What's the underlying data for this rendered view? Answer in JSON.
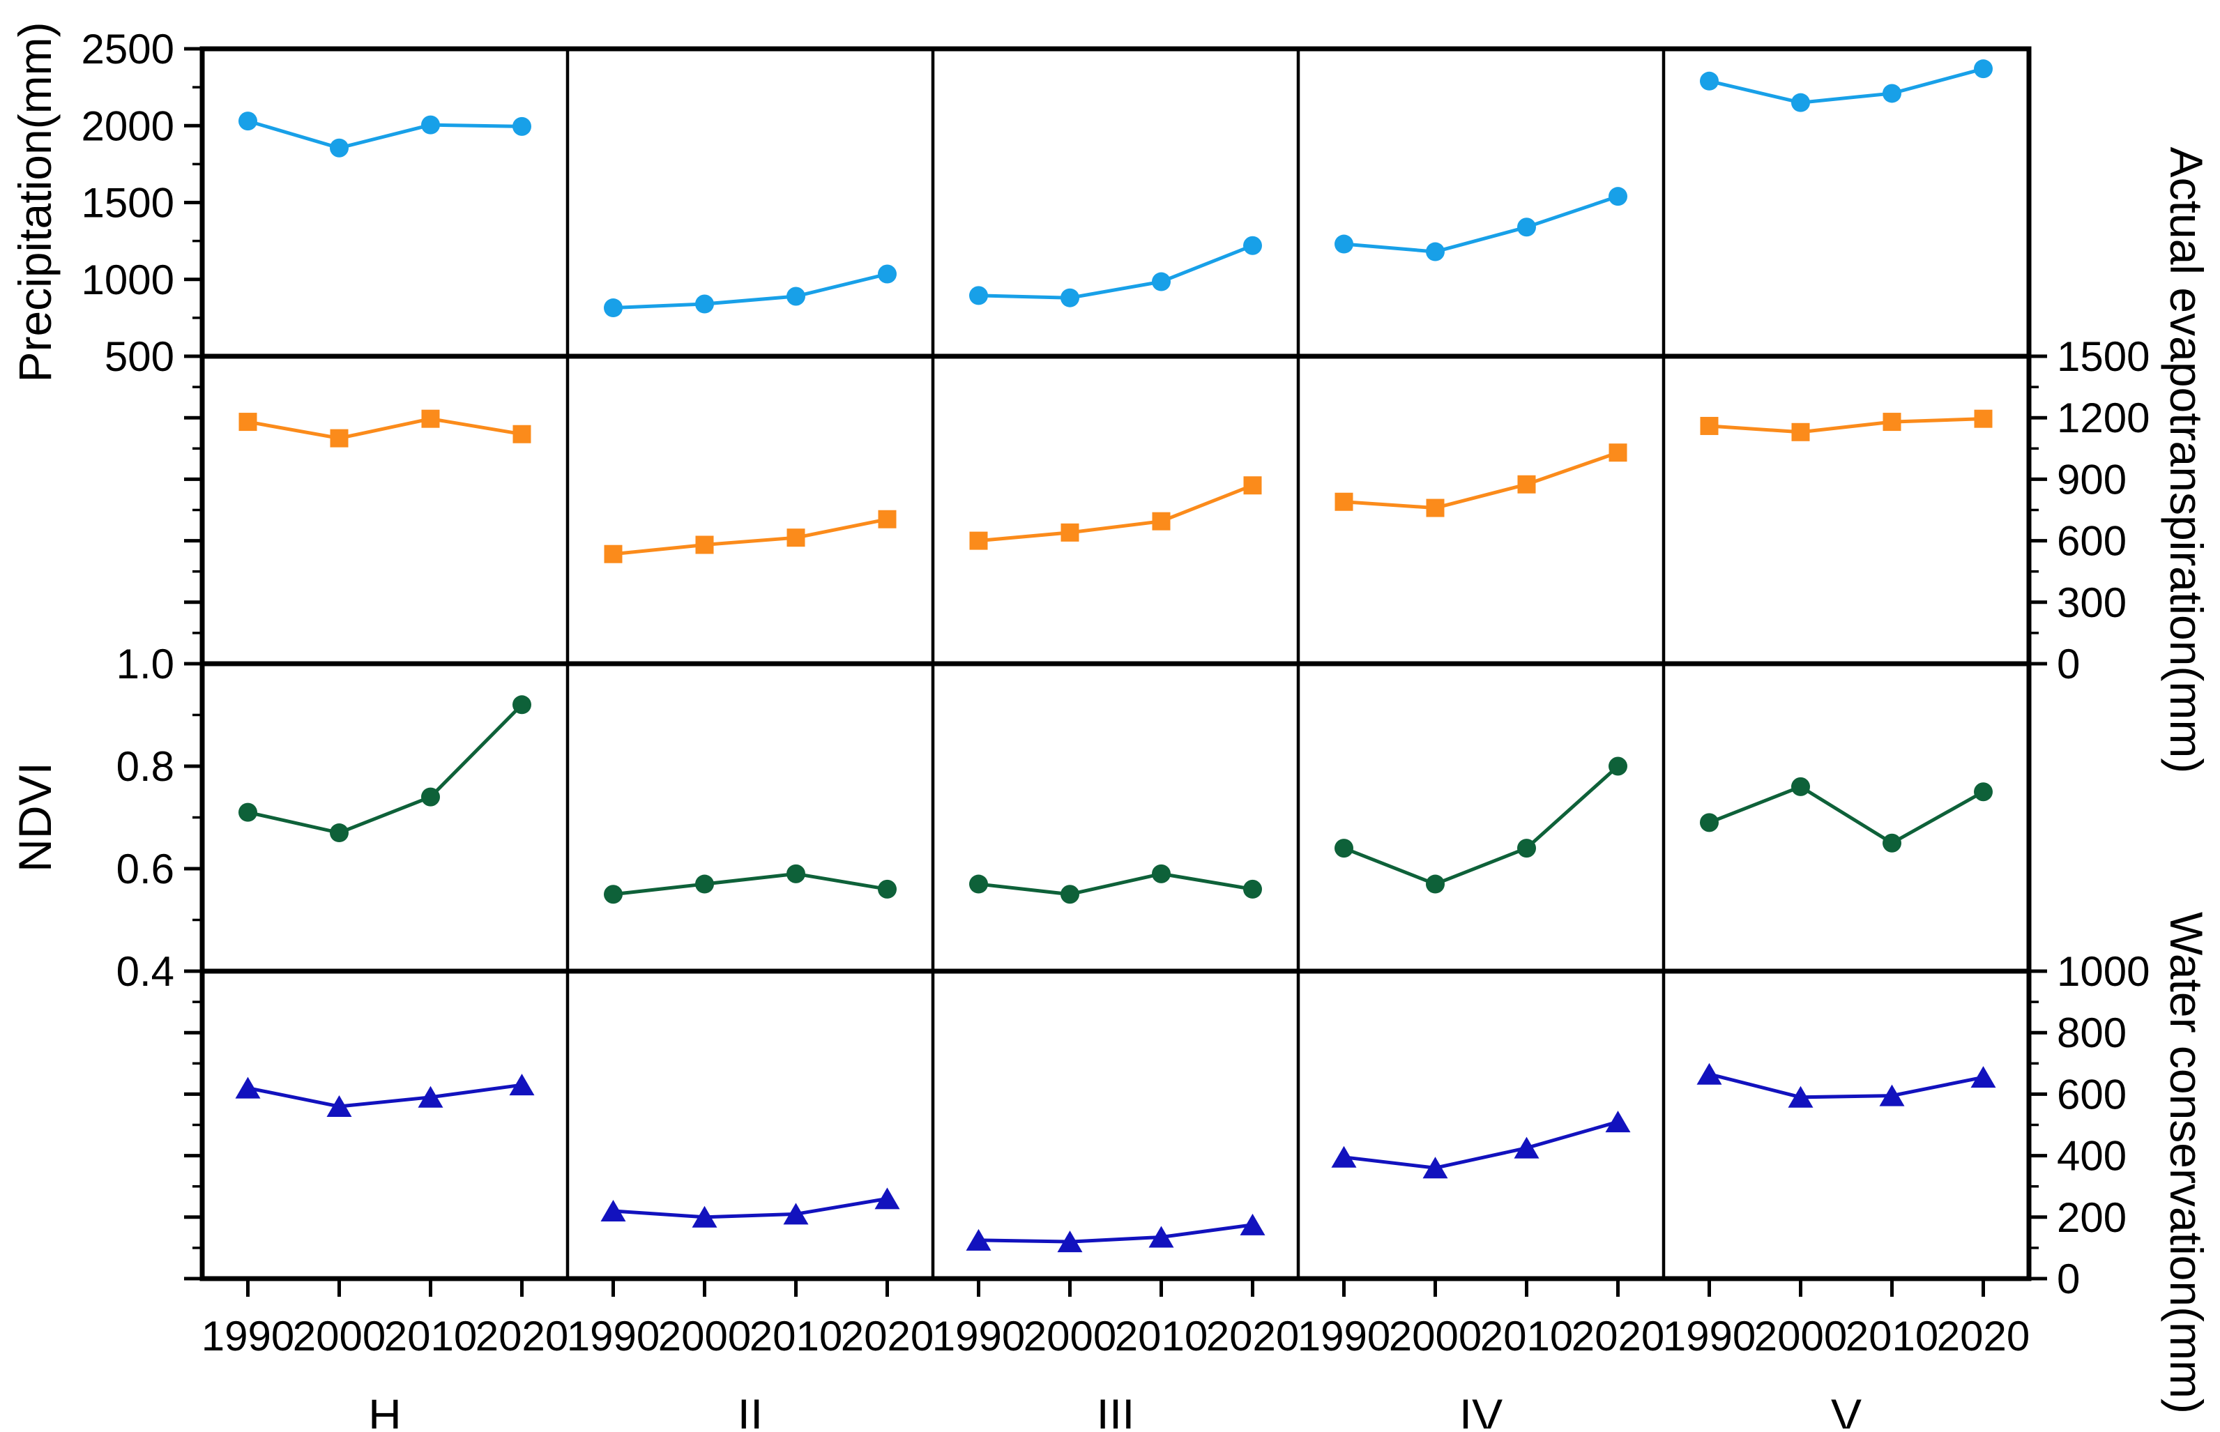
{
  "chart_data": {
    "type": "line",
    "layout": "small-multiples grid: 4 variable rows x 5 region columns, shared x axis",
    "columns": [
      "H",
      "II",
      "III",
      "IV",
      "V"
    ],
    "x": [
      1990,
      2000,
      2010,
      2020
    ],
    "x_tick_labels": [
      "1990",
      "2000",
      "2010",
      "2020"
    ],
    "axis_color": "#000000",
    "background": "#ffffff",
    "rows": [
      {
        "name": "precipitation",
        "ylabel": "Precipitation(mm)",
        "label_side": "left",
        "ylim": [
          500,
          2500
        ],
        "major_ticks": [
          2500,
          2000,
          1500,
          1000,
          500
        ],
        "minor_step": 250,
        "tick_decimals": 0,
        "marker": "circle",
        "color": "#18A0E8",
        "series": [
          {
            "region": "H",
            "values": [
              2030,
              1855,
              2005,
              1995
            ]
          },
          {
            "region": "II",
            "values": [
              815,
              840,
              890,
              1035
            ]
          },
          {
            "region": "III",
            "values": [
              895,
              880,
              985,
              1220
            ]
          },
          {
            "region": "IV",
            "values": [
              1230,
              1180,
              1340,
              1540
            ]
          },
          {
            "region": "V",
            "values": [
              2290,
              2150,
              2210,
              2370
            ]
          }
        ]
      },
      {
        "name": "actual-evapotranspiration",
        "ylabel": "Actual evapotranspiration(mm)",
        "label_side": "right",
        "ylim": [
          0,
          1500
        ],
        "major_ticks": [
          1500,
          1200,
          900,
          600,
          300,
          0
        ],
        "minor_step": 150,
        "tick_decimals": 0,
        "marker": "square",
        "color": "#FB8B1B",
        "series": [
          {
            "region": "H",
            "values": [
              1180,
              1100,
              1195,
              1120
            ]
          },
          {
            "region": "II",
            "values": [
              535,
              580,
              615,
              705
            ]
          },
          {
            "region": "III",
            "values": [
              600,
              640,
              695,
              870
            ]
          },
          {
            "region": "IV",
            "values": [
              790,
              760,
              875,
              1030
            ]
          },
          {
            "region": "V",
            "values": [
              1160,
              1130,
              1180,
              1195
            ]
          }
        ]
      },
      {
        "name": "ndvi",
        "ylabel": "NDVI",
        "label_side": "left",
        "ylim": [
          0.4,
          1.0
        ],
        "major_ticks": [
          1.0,
          0.8,
          0.6,
          0.4
        ],
        "minor_step": 0.1,
        "tick_decimals": 1,
        "marker": "circle",
        "color": "#0E6139",
        "series": [
          {
            "region": "H",
            "values": [
              0.71,
              0.67,
              0.74,
              0.92
            ]
          },
          {
            "region": "II",
            "values": [
              0.55,
              0.57,
              0.59,
              0.56
            ]
          },
          {
            "region": "III",
            "values": [
              0.57,
              0.55,
              0.59,
              0.56
            ]
          },
          {
            "region": "IV",
            "values": [
              0.64,
              0.57,
              0.64,
              0.8
            ]
          },
          {
            "region": "V",
            "values": [
              0.69,
              0.76,
              0.65,
              0.75
            ]
          }
        ]
      },
      {
        "name": "water-conservation",
        "ylabel": "Water conservation(mm)",
        "label_side": "right",
        "ylim": [
          0,
          1000
        ],
        "major_ticks": [
          1000,
          800,
          600,
          400,
          200,
          0
        ],
        "minor_step": 100,
        "tick_decimals": 0,
        "marker": "triangle",
        "color": "#1212BE",
        "series": [
          {
            "region": "H",
            "values": [
              620,
              560,
              590,
              630
            ]
          },
          {
            "region": "II",
            "values": [
              220,
              200,
              210,
              260
            ]
          },
          {
            "region": "III",
            "values": [
              125,
              120,
              135,
              175
            ]
          },
          {
            "region": "IV",
            "values": [
              395,
              360,
              425,
              510
            ]
          },
          {
            "region": "V",
            "values": [
              665,
              590,
              595,
              655
            ]
          }
        ]
      }
    ]
  }
}
